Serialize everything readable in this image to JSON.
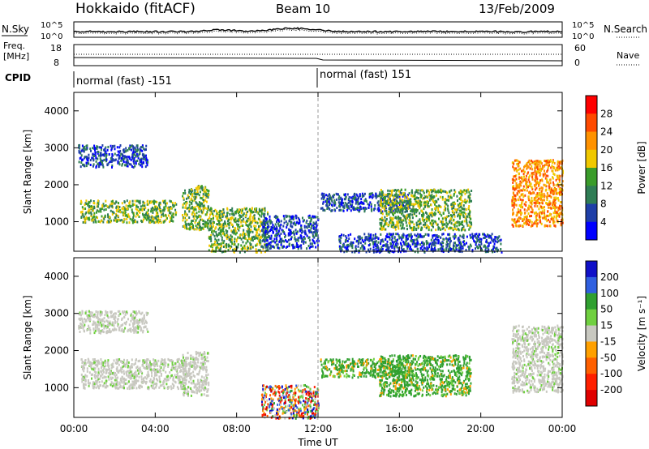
{
  "header": {
    "radar": "Hokkaido (fitACF)",
    "beam": "Beam 10",
    "date": "13/Feb/2009"
  },
  "top_panels": {
    "nsky_label": "N.Sky",
    "nsearch_label": "N.Search",
    "noise_ticks": [
      "10^5",
      "10^0"
    ],
    "freq_label": "Freq.",
    "freq_unit": "[MHz]",
    "freq_ticks": [
      "18",
      "8"
    ],
    "nave_label": "Nave",
    "nave_ticks": [
      "60",
      "0"
    ],
    "cpid_label": "CPID",
    "cpid_segments": [
      {
        "text": "normal (fast) -151",
        "start_hour": 0
      },
      {
        "text": "normal (fast) 151",
        "start_hour": 12
      }
    ]
  },
  "chart_data": [
    {
      "type": "heatmap",
      "name": "power",
      "ylabel": "Slant Range [km]",
      "xlabel": "Time UT",
      "xlim": [
        0,
        24
      ],
      "ylim": [
        200,
        4500
      ],
      "yticks": [
        1000,
        2000,
        3000,
        4000
      ],
      "xticks": [
        "00:00",
        "04:00",
        "08:00",
        "12:00",
        "16:00",
        "20:00",
        "00:00"
      ],
      "colorbar": {
        "label": "Power [dB]",
        "ticks": [
          "28",
          "24",
          "20",
          "16",
          "12",
          "8",
          "4"
        ],
        "colors": [
          "#ff0000",
          "#ff4a00",
          "#ff9200",
          "#f0c800",
          "#3a9c2a",
          "#2f7d55",
          "#1f3fa8",
          "#0000ff"
        ]
      },
      "echo_regions": [
        {
          "t0": 0.2,
          "t1": 3.6,
          "r0": 2500,
          "r1": 3100,
          "level": "low"
        },
        {
          "t0": 0.3,
          "t1": 5.0,
          "r0": 1000,
          "r1": 1600,
          "level": "mid"
        },
        {
          "t0": 5.3,
          "t1": 6.6,
          "r0": 800,
          "r1": 2000,
          "level": "mid"
        },
        {
          "t0": 6.6,
          "t1": 9.5,
          "r0": 200,
          "r1": 1400,
          "level": "mid"
        },
        {
          "t0": 9.2,
          "t1": 12.0,
          "r0": 300,
          "r1": 1200,
          "level": "low"
        },
        {
          "t0": 12.1,
          "t1": 16.5,
          "r0": 1300,
          "r1": 1800,
          "level": "low"
        },
        {
          "t0": 15.0,
          "t1": 19.5,
          "r0": 800,
          "r1": 1900,
          "level": "mid"
        },
        {
          "t0": 13.0,
          "t1": 21.0,
          "r0": 200,
          "r1": 700,
          "level": "low"
        },
        {
          "t0": 21.5,
          "t1": 24.0,
          "r0": 900,
          "r1": 2700,
          "level": "high"
        }
      ]
    },
    {
      "type": "heatmap",
      "name": "velocity",
      "ylabel": "Slant Range [km]",
      "xlabel": "Time UT",
      "xlim": [
        0,
        24
      ],
      "ylim": [
        200,
        4500
      ],
      "yticks": [
        1000,
        2000,
        3000,
        4000
      ],
      "xticks": [
        "00:00",
        "04:00",
        "08:00",
        "12:00",
        "16:00",
        "20:00",
        "00:00"
      ],
      "colorbar": {
        "label": "Velocity [m s⁻¹]",
        "ticks": [
          "200",
          "100",
          "50",
          "15",
          "-15",
          "-50",
          "-100",
          "-200"
        ],
        "colors": [
          "#1010c8",
          "#3060e0",
          "#30a030",
          "#70d040",
          "#c8c8c0",
          "#ffa000",
          "#ff6000",
          "#ff2000",
          "#e00000"
        ]
      },
      "echo_regions": [
        {
          "t0": 0.2,
          "t1": 3.6,
          "r0": 2500,
          "r1": 3100,
          "level": "ground"
        },
        {
          "t0": 0.3,
          "t1": 5.5,
          "r0": 1000,
          "r1": 1800,
          "level": "ground"
        },
        {
          "t0": 5.3,
          "t1": 6.6,
          "r0": 800,
          "r1": 2000,
          "level": "ground"
        },
        {
          "t0": 9.2,
          "t1": 12.0,
          "r0": 200,
          "r1": 1100,
          "level": "mixed"
        },
        {
          "t0": 12.1,
          "t1": 16.5,
          "r0": 1300,
          "r1": 1800,
          "level": "pos"
        },
        {
          "t0": 15.0,
          "t1": 19.5,
          "r0": 800,
          "r1": 1900,
          "level": "pos"
        },
        {
          "t0": 21.5,
          "t1": 24.0,
          "r0": 900,
          "r1": 2700,
          "level": "ground"
        }
      ]
    }
  ]
}
